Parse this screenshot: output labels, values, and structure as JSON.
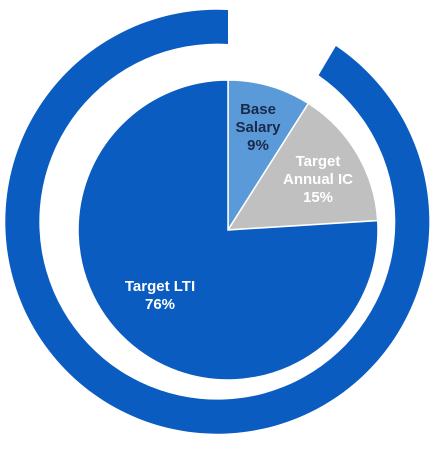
{
  "chart_data": {
    "type": "pie",
    "categories": [
      "Base Salary",
      "Target Annual IC",
      "Target LTI"
    ],
    "values": [
      9,
      15,
      76
    ],
    "value_labels": [
      "9%",
      "15%",
      "76%"
    ],
    "colors": [
      "#5a9ad8",
      "#c0c0c0",
      "#0b5cc0"
    ]
  }
}
